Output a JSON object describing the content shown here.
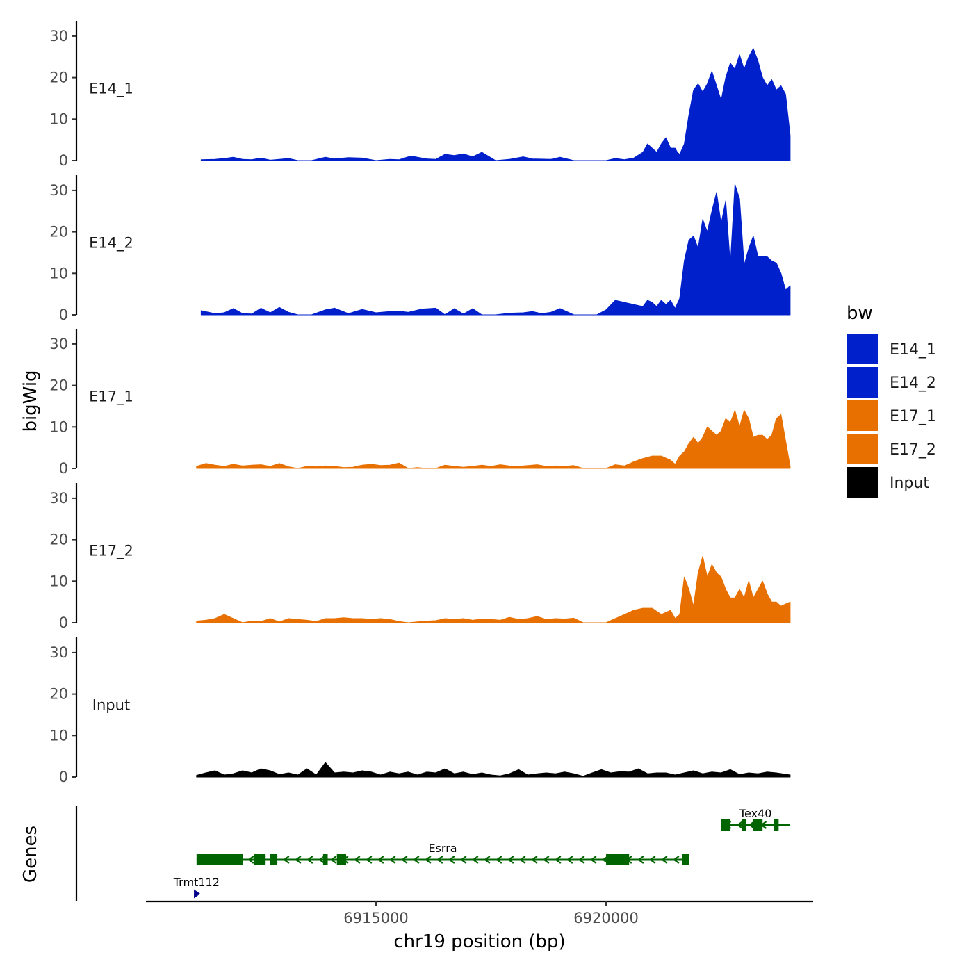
{
  "chart_data": {
    "type": "area",
    "chromosome": "chr19",
    "xlabel": "chr19 position (bp)",
    "ylabel": "bigWig",
    "genes_label": "Genes",
    "xlim": [
      6910000,
      6924500
    ],
    "x_ticks": [
      6915000,
      6920000
    ],
    "x_tick_labels": [
      "6915000",
      "6920000"
    ],
    "ylim": [
      0,
      33
    ],
    "y_ticks": [
      0,
      10,
      20,
      30
    ],
    "y_tick_labels": [
      "0",
      "10",
      "20",
      "30"
    ],
    "legend": {
      "title": "bw",
      "entries": [
        {
          "label": "E14_1",
          "color": "#0020CC"
        },
        {
          "label": "E14_2",
          "color": "#0020CC"
        },
        {
          "label": "E17_1",
          "color": "#E87000"
        },
        {
          "label": "E17_2",
          "color": "#E87000"
        },
        {
          "label": "Input",
          "color": "#000000"
        }
      ]
    },
    "series": [
      {
        "name": "E14_1",
        "color": "#0020CC",
        "x": [
          6911200,
          6911500,
          6911700,
          6911900,
          6912100,
          6912300,
          6912500,
          6912700,
          6912900,
          6913100,
          6913300,
          6913600,
          6913900,
          6914100,
          6914400,
          6914700,
          6915000,
          6915300,
          6915500,
          6915700,
          6915800,
          6916100,
          6916300,
          6916500,
          6916700,
          6916900,
          6917100,
          6917300,
          6917600,
          6917900,
          6918200,
          6918400,
          6918800,
          6919000,
          6919300,
          6919500,
          6919800,
          6920000,
          6920200,
          6920400,
          6920600,
          6920800,
          6920900,
          6921000,
          6921100,
          6921200,
          6921300,
          6921400,
          6921500,
          6921550,
          6921600,
          6921700,
          6921800,
          6921900,
          6922000,
          6922100,
          6922200,
          6922300,
          6922400,
          6922500,
          6922600,
          6922700,
          6922800,
          6922900,
          6923000,
          6923100,
          6923200,
          6923300,
          6923400,
          6923500,
          6923600,
          6923700,
          6923800,
          6923900,
          6924000
        ],
        "values": [
          0.2,
          0.3,
          0.5,
          0.8,
          0.3,
          0.2,
          0.6,
          0.1,
          0.3,
          0.5,
          0,
          0,
          0.8,
          0.4,
          0.7,
          0.6,
          0,
          0.3,
          0.2,
          0.9,
          1,
          0.4,
          0.3,
          1.5,
          1.2,
          1.6,
          0.9,
          2,
          0,
          0.3,
          0.9,
          0.4,
          0.3,
          0.8,
          0,
          0,
          0,
          0,
          0.5,
          0.2,
          0.6,
          2,
          4,
          3,
          2,
          4,
          5.5,
          3,
          3,
          2,
          1.5,
          4,
          11,
          17,
          18.5,
          16.5,
          18.5,
          21.5,
          18,
          14.5,
          20,
          23.5,
          22,
          25.5,
          22,
          25,
          27,
          24,
          20,
          18,
          19.5,
          17,
          18,
          16,
          6
        ]
      },
      {
        "name": "E14_2",
        "color": "#0020CC",
        "x": [
          6911200,
          6911500,
          6911700,
          6911900,
          6912100,
          6912300,
          6912500,
          6912700,
          6912900,
          6913100,
          6913300,
          6913600,
          6913900,
          6914100,
          6914400,
          6914700,
          6915000,
          6915300,
          6915500,
          6915700,
          6916000,
          6916300,
          6916500,
          6916700,
          6916900,
          6917100,
          6917300,
          6917600,
          6917900,
          6918200,
          6918400,
          6918600,
          6918800,
          6919000,
          6919300,
          6919500,
          6919800,
          6920000,
          6920200,
          6920400,
          6920600,
          6920800,
          6920900,
          6921000,
          6921100,
          6921200,
          6921300,
          6921400,
          6921500,
          6921600,
          6921700,
          6921800,
          6921900,
          6922000,
          6922100,
          6922200,
          6922300,
          6922400,
          6922500,
          6922600,
          6922700,
          6922800,
          6922900,
          6923000,
          6923100,
          6923200,
          6923300,
          6923400,
          6923500,
          6923600,
          6923700,
          6923800,
          6923900,
          6924000
        ],
        "values": [
          1,
          0.3,
          0.5,
          1.5,
          0.3,
          0.2,
          1.6,
          0.5,
          1.8,
          0.6,
          0,
          0,
          1.2,
          1.6,
          0.3,
          1.3,
          0.5,
          0.8,
          0.9,
          0.6,
          1.4,
          1.6,
          0,
          1.5,
          0.2,
          1.5,
          0,
          0,
          0.4,
          0.5,
          0.8,
          0.3,
          0.6,
          1.5,
          0,
          0,
          0,
          1.2,
          3.5,
          3,
          2.5,
          2,
          3.5,
          3,
          2,
          3.5,
          2.5,
          3.5,
          1.5,
          4,
          13,
          18,
          19,
          16,
          23,
          20,
          25,
          29.5,
          22,
          27.5,
          12,
          31.5,
          28,
          12,
          16,
          19,
          14,
          14,
          14,
          13,
          12.5,
          10,
          6,
          7
        ]
      },
      {
        "name": "E17_1",
        "color": "#E87000",
        "x": [
          6911100,
          6911300,
          6911500,
          6911700,
          6911900,
          6912100,
          6912300,
          6912500,
          6912700,
          6912900,
          6913100,
          6913300,
          6913500,
          6913700,
          6913900,
          6914100,
          6914300,
          6914500,
          6914700,
          6914900,
          6915100,
          6915300,
          6915500,
          6915700,
          6915900,
          6916100,
          6916300,
          6916500,
          6916700,
          6916900,
          6917100,
          6917300,
          6917500,
          6917700,
          6917900,
          6918100,
          6918300,
          6918500,
          6918700,
          6918900,
          6919100,
          6919300,
          6919500,
          6919800,
          6920000,
          6920200,
          6920400,
          6920600,
          6920800,
          6921000,
          6921200,
          6921400,
          6921500,
          6921600,
          6921700,
          6921800,
          6921900,
          6922000,
          6922100,
          6922200,
          6922300,
          6922400,
          6922500,
          6922600,
          6922700,
          6922800,
          6922900,
          6923000,
          6923100,
          6923200,
          6923300,
          6923400,
          6923500,
          6923600,
          6923700,
          6923800,
          6924000
        ],
        "values": [
          0.5,
          1.2,
          0.8,
          0.5,
          1,
          0.6,
          0.8,
          0.9,
          0.5,
          1.2,
          0.4,
          0,
          0.5,
          0.4,
          0.6,
          0.5,
          0.2,
          0.3,
          0.8,
          1,
          0.7,
          0.8,
          1.3,
          0,
          0.2,
          0,
          0,
          0.8,
          0.5,
          0.3,
          0.5,
          0.8,
          0.5,
          0.9,
          0.6,
          0.5,
          0.7,
          0.9,
          0.5,
          0.6,
          0.5,
          0.7,
          0,
          0,
          0,
          0.9,
          0.6,
          1.6,
          2.4,
          3,
          3,
          2,
          1,
          3,
          4,
          6,
          7.5,
          6,
          7.5,
          10,
          9,
          8,
          9,
          12,
          11,
          14,
          10,
          14,
          12,
          7.5,
          8,
          8,
          7,
          8,
          12,
          13,
          0.5
        ]
      },
      {
        "name": "E17_2",
        "color": "#E87000",
        "x": [
          6911100,
          6911300,
          6911500,
          6911700,
          6911900,
          6912100,
          6912300,
          6912500,
          6912700,
          6912900,
          6913100,
          6913300,
          6913500,
          6913700,
          6913900,
          6914100,
          6914300,
          6914500,
          6914700,
          6914900,
          6915100,
          6915300,
          6915500,
          6915700,
          6915900,
          6916100,
          6916300,
          6916500,
          6916700,
          6916900,
          6917100,
          6917300,
          6917500,
          6917700,
          6917900,
          6918100,
          6918300,
          6918500,
          6918700,
          6918900,
          6919100,
          6919300,
          6919500,
          6919800,
          6920000,
          6920200,
          6920400,
          6920600,
          6920800,
          6921000,
          6921200,
          6921400,
          6921500,
          6921600,
          6921700,
          6921800,
          6921900,
          6922000,
          6922100,
          6922200,
          6922300,
          6922400,
          6922500,
          6922600,
          6922700,
          6922800,
          6922900,
          6923000,
          6923100,
          6923200,
          6923300,
          6923400,
          6923500,
          6923600,
          6923700,
          6923800,
          6924000
        ],
        "values": [
          0.4,
          0.6,
          1,
          2,
          1,
          0,
          0.4,
          0.3,
          1,
          0.2,
          1,
          0.8,
          0.6,
          0.3,
          1,
          1,
          1.2,
          1,
          1,
          0.8,
          1,
          0.8,
          0.3,
          0,
          0.2,
          0.4,
          0.5,
          1,
          0.8,
          1,
          0.6,
          0.9,
          0.8,
          0.6,
          1.3,
          0.8,
          1,
          1.5,
          0.8,
          1,
          0.9,
          1.1,
          0,
          0,
          0,
          1,
          2,
          3,
          3.5,
          3.5,
          2,
          3,
          1,
          2,
          11,
          8,
          4,
          12,
          16,
          11,
          14,
          12,
          11,
          8,
          6,
          6,
          8,
          6,
          10,
          6,
          8,
          10,
          7,
          5,
          5,
          4,
          5
        ]
      },
      {
        "name": "Input",
        "color": "#000000",
        "x": [
          6911100,
          6911300,
          6911500,
          6911700,
          6911900,
          6912100,
          6912300,
          6912500,
          6912700,
          6912900,
          6913100,
          6913300,
          6913500,
          6913700,
          6913900,
          6914100,
          6914300,
          6914500,
          6914700,
          6914900,
          6915100,
          6915300,
          6915500,
          6915700,
          6915900,
          6916100,
          6916300,
          6916500,
          6916700,
          6916900,
          6917100,
          6917300,
          6917500,
          6917700,
          6917900,
          6918100,
          6918300,
          6918500,
          6918700,
          6918900,
          6919100,
          6919300,
          6919500,
          6919700,
          6919900,
          6920100,
          6920300,
          6920500,
          6920700,
          6920900,
          6921100,
          6921300,
          6921500,
          6921700,
          6921900,
          6922100,
          6922300,
          6922500,
          6922700,
          6922900,
          6923100,
          6923300,
          6923500,
          6923700,
          6924000
        ],
        "values": [
          0.4,
          1,
          1.5,
          0.5,
          0.8,
          1.5,
          1,
          2,
          1.5,
          0.6,
          1,
          0.5,
          2,
          0.5,
          3.5,
          1,
          1.2,
          1,
          1.5,
          1.2,
          0.5,
          1.2,
          0.8,
          1.2,
          0.5,
          1.2,
          1,
          2,
          0.8,
          1.2,
          0.6,
          1,
          0.5,
          0.3,
          0.8,
          1.8,
          0.5,
          0.8,
          1,
          0.8,
          1.2,
          0.8,
          0.2,
          1,
          1.8,
          1,
          1.3,
          1.2,
          2,
          0.8,
          1,
          1,
          0.5,
          1,
          1.5,
          0.8,
          1.2,
          1,
          1.8,
          0.6,
          1,
          0.8,
          1.2,
          1,
          0.5
        ]
      }
    ],
    "genes": [
      {
        "name": "Esrra",
        "start": 6911100,
        "end": 6921800,
        "strand": "-",
        "color": "#006400",
        "exons": [
          [
            6911100,
            6912100
          ],
          [
            6912350,
            6912600
          ],
          [
            6912700,
            6912850
          ],
          [
            6913850,
            6913950
          ],
          [
            6914150,
            6914350
          ],
          [
            6920000,
            6920500
          ],
          [
            6921650,
            6921800
          ]
        ]
      },
      {
        "name": "Tex40",
        "start": 6922500,
        "end": 6924000,
        "strand": "-",
        "color": "#006400",
        "exons": [
          [
            6922500,
            6922700
          ],
          [
            6922950,
            6923050
          ],
          [
            6923200,
            6923400
          ],
          [
            6923650,
            6923750
          ]
        ]
      },
      {
        "name": "Trmt112",
        "start": 6911100,
        "end": 6911130,
        "strand": "+",
        "color": "#00008B",
        "exons": []
      }
    ]
  }
}
